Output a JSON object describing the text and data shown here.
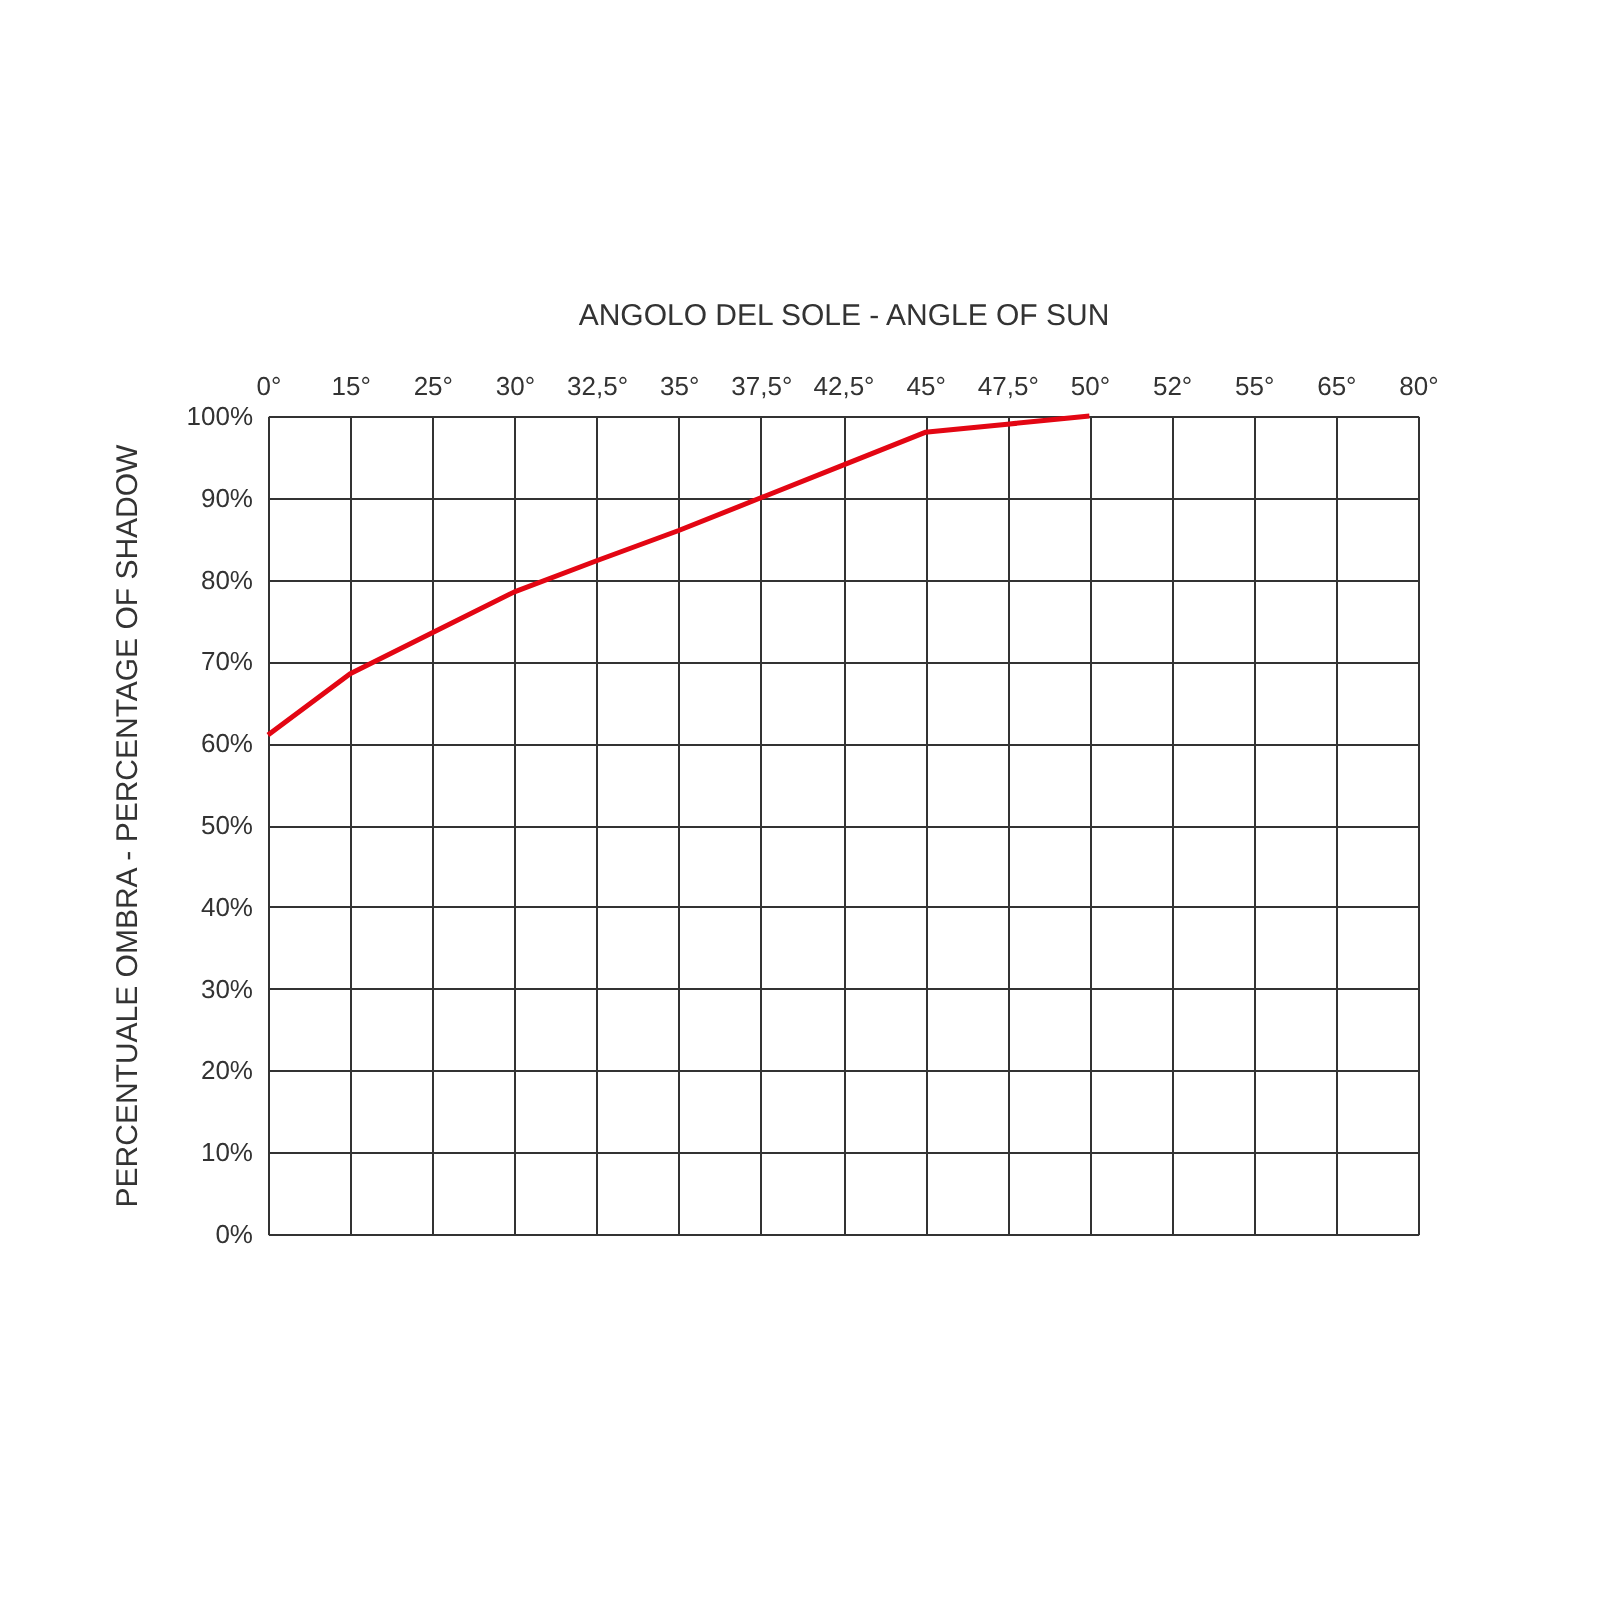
{
  "chart_data": {
    "type": "line",
    "xlabel": "ANGOLO DEL SOLE - ANGLE OF SUN",
    "ylabel": "PERCENTUALE OMBRA - PERCENTAGE OF SHADOW",
    "categories": [
      "0°",
      "15°",
      "25°",
      "30°",
      "32,5°",
      "35°",
      "37,5°",
      "42,5°",
      "45°",
      "47,5°",
      "50°",
      "52°",
      "55°",
      "65°",
      "80°"
    ],
    "series": [
      {
        "color": "#e30613",
        "values": [
          61,
          68.5,
          73.5,
          78.5,
          82.3,
          86,
          90,
          94,
          98,
          99,
          100,
          null,
          null,
          null,
          null
        ]
      }
    ],
    "ylim": [
      0,
      100
    ],
    "yticks": [
      {
        "value": 0,
        "label": "0%"
      },
      {
        "value": 10,
        "label": "10%"
      },
      {
        "value": 20,
        "label": "20%"
      },
      {
        "value": 30,
        "label": "30%"
      },
      {
        "value": 40,
        "label": "40%"
      },
      {
        "value": 50,
        "label": "50%"
      },
      {
        "value": 60,
        "label": "60%"
      },
      {
        "value": 70,
        "label": "70%"
      },
      {
        "value": 80,
        "label": "80%"
      },
      {
        "value": 90,
        "label": "90%"
      },
      {
        "value": 100,
        "label": "100%"
      }
    ],
    "grid": true,
    "marker": "none",
    "line_style": "solid"
  }
}
